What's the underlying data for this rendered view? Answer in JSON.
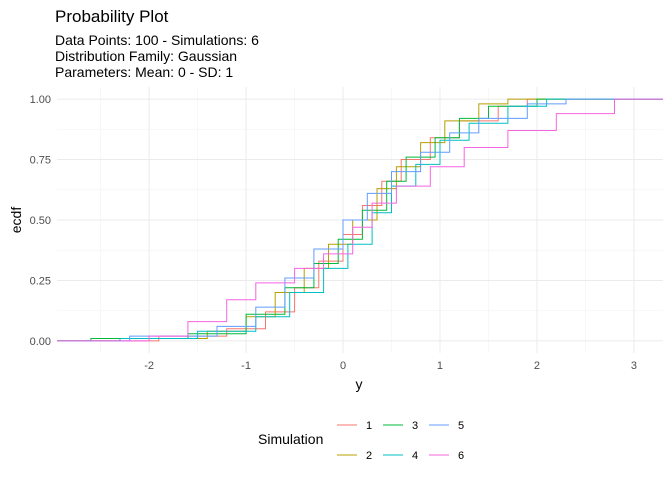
{
  "chart_data": {
    "type": "line",
    "step": true,
    "title": "Probability Plot",
    "subtitle_lines": [
      "Data Points: 100 - Simulations: 6",
      "Distribution Family: Gaussian",
      "Parameters: Mean: 0 - SD: 1"
    ],
    "xlabel": "y",
    "ylabel": "ecdf",
    "xlim": [
      -2.95,
      3.3
    ],
    "ylim": [
      -0.05,
      1.05
    ],
    "x_ticks": [
      -2,
      -1,
      0,
      1,
      2,
      3
    ],
    "x_tick_labels": [
      "-2",
      "-1",
      "0",
      "1",
      "2",
      "3"
    ],
    "y_ticks": [
      0,
      0.25,
      0.5,
      0.75,
      1
    ],
    "y_tick_labels": [
      "0.00",
      "0.25",
      "0.50",
      "0.75",
      "1.00"
    ],
    "grid": true,
    "legend": {
      "title": "Simulation",
      "position": "bottom",
      "labels": [
        "1",
        "2",
        "3",
        "4",
        "5",
        "6"
      ]
    },
    "series": [
      {
        "name": "1",
        "color": "#F8766D",
        "x": [
          -2.95,
          -1.9,
          -1.2,
          -0.8,
          -0.5,
          -0.25,
          0.0,
          0.2,
          0.4,
          0.6,
          0.9,
          1.2,
          1.6,
          1.9,
          3.3
        ],
        "y": [
          0,
          0.02,
          0.05,
          0.12,
          0.22,
          0.33,
          0.44,
          0.56,
          0.66,
          0.75,
          0.84,
          0.91,
          0.97,
          1.0,
          1.0
        ]
      },
      {
        "name": "2",
        "color": "#B79F00",
        "x": [
          -2.95,
          -2.3,
          -1.4,
          -1.0,
          -0.7,
          -0.4,
          -0.15,
          0.1,
          0.35,
          0.55,
          0.8,
          1.05,
          1.4,
          1.7,
          3.3
        ],
        "y": [
          0,
          0.01,
          0.04,
          0.1,
          0.2,
          0.3,
          0.4,
          0.5,
          0.63,
          0.72,
          0.82,
          0.91,
          0.98,
          1.0,
          1.0
        ]
      },
      {
        "name": "3",
        "color": "#00BA38",
        "x": [
          -2.95,
          -2.6,
          -1.6,
          -1.0,
          -0.6,
          -0.3,
          -0.05,
          0.2,
          0.45,
          0.65,
          0.95,
          1.2,
          1.5,
          2.0,
          3.3
        ],
        "y": [
          0,
          0.01,
          0.03,
          0.11,
          0.22,
          0.32,
          0.42,
          0.54,
          0.66,
          0.76,
          0.84,
          0.92,
          0.97,
          1.0,
          1.0
        ]
      },
      {
        "name": "4",
        "color": "#00BFC4",
        "x": [
          -2.95,
          -2.3,
          -1.5,
          -0.9,
          -0.55,
          -0.2,
          0.05,
          0.3,
          0.5,
          0.75,
          1.0,
          1.3,
          1.7,
          2.1,
          3.3
        ],
        "y": [
          0,
          0.01,
          0.04,
          0.1,
          0.2,
          0.3,
          0.4,
          0.53,
          0.64,
          0.73,
          0.83,
          0.9,
          0.97,
          1.0,
          1.0
        ]
      },
      {
        "name": "5",
        "color": "#619CFF",
        "x": [
          -2.95,
          -2.2,
          -1.3,
          -0.9,
          -0.6,
          -0.3,
          0.0,
          0.25,
          0.5,
          0.8,
          1.1,
          1.4,
          1.9,
          2.3,
          3.3
        ],
        "y": [
          0,
          0.02,
          0.06,
          0.14,
          0.26,
          0.38,
          0.5,
          0.61,
          0.7,
          0.78,
          0.86,
          0.92,
          0.98,
          1.0,
          1.0
        ]
      },
      {
        "name": "6",
        "color": "#F564E3",
        "x": [
          -2.95,
          -2.0,
          -1.6,
          -1.2,
          -0.9,
          -0.5,
          -0.2,
          0.1,
          0.3,
          0.55,
          0.9,
          1.25,
          1.7,
          2.2,
          2.8,
          3.3
        ],
        "y": [
          0,
          0.02,
          0.08,
          0.17,
          0.24,
          0.3,
          0.36,
          0.47,
          0.57,
          0.64,
          0.72,
          0.8,
          0.87,
          0.94,
          1.0,
          1.0
        ]
      }
    ]
  }
}
